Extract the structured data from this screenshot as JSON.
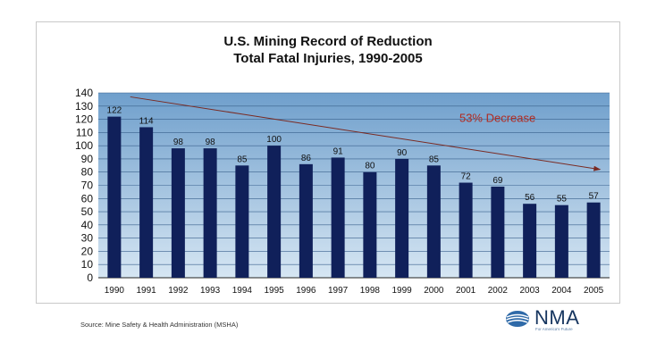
{
  "chart_data": {
    "type": "bar",
    "title": "U.S. Mining Record of Reduction",
    "subtitle": "Total Fatal Injuries, 1990-2005",
    "categories": [
      "1990",
      "1991",
      "1992",
      "1993",
      "1994",
      "1995",
      "1996",
      "1997",
      "1998",
      "1999",
      "2000",
      "2001",
      "2002",
      "2003",
      "2004",
      "2005"
    ],
    "values": [
      122,
      114,
      98,
      98,
      85,
      100,
      86,
      91,
      80,
      90,
      85,
      72,
      69,
      56,
      55,
      57
    ],
    "xlabel": "",
    "ylabel": "",
    "ylim": [
      0,
      140
    ],
    "yticks": [
      0,
      10,
      20,
      30,
      40,
      50,
      60,
      70,
      80,
      90,
      100,
      110,
      120,
      130,
      140
    ],
    "grid": true,
    "legend": "none",
    "trend_line": {
      "start": 137,
      "end": 82
    },
    "annotation": "53% Decrease",
    "colors": {
      "bar": "#10205a",
      "plot_top": "#6f9fcc",
      "plot_bottom": "#d6e6f3",
      "trend": "#7a2a22",
      "annotation": "#b12a20"
    }
  },
  "footer": {
    "source": "Source: Mine Safety & Health Administration (MSHA)"
  },
  "logo": {
    "text": "NMA",
    "tagline": "For America's Future",
    "icon": "nma-globe-icon"
  }
}
